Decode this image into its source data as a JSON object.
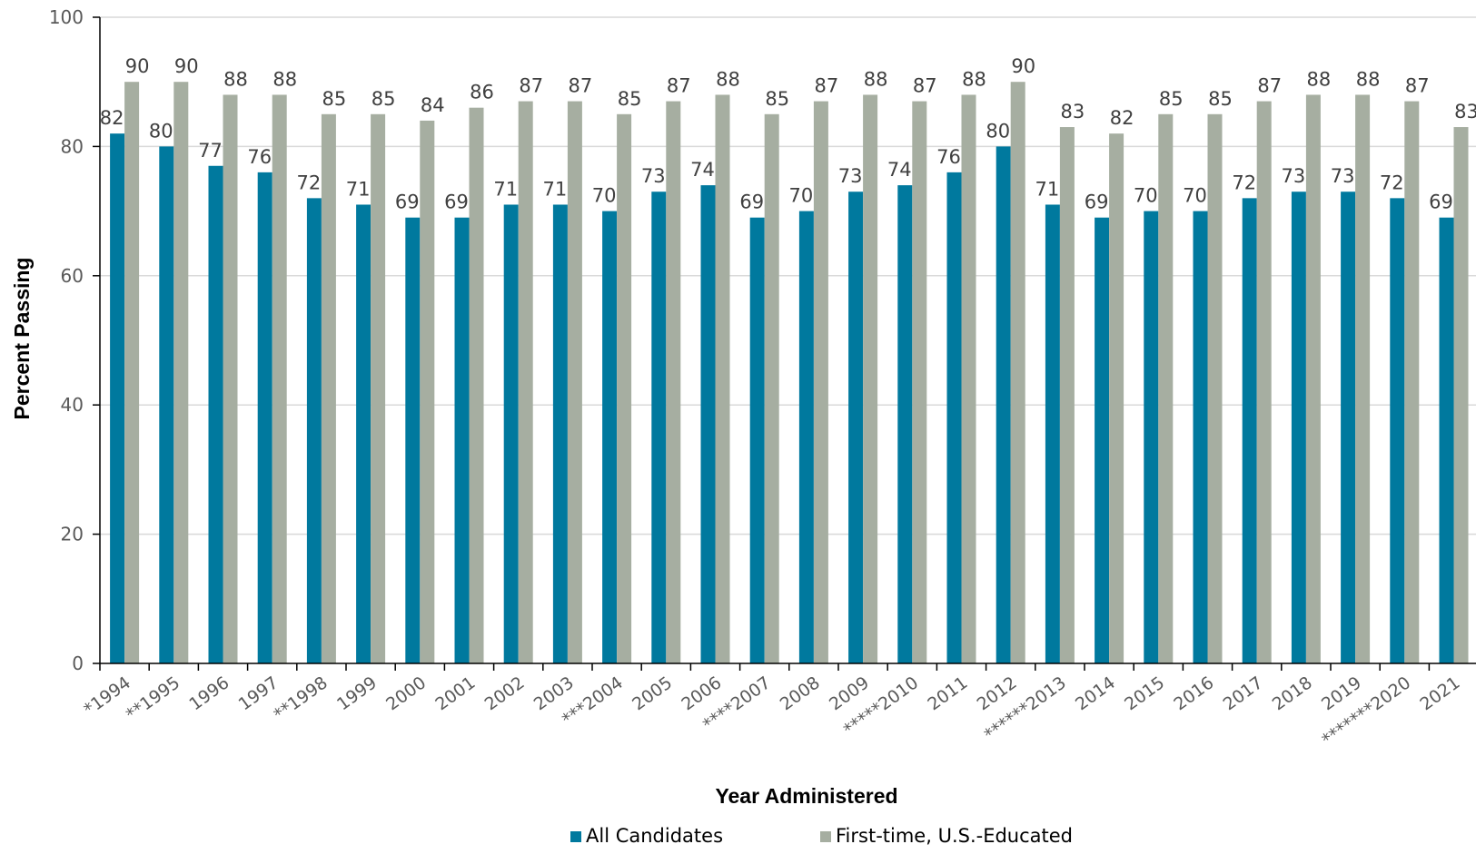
{
  "chart_data": {
    "type": "bar",
    "categories": [
      "*1994",
      "**1995",
      "1996",
      "1997",
      "**1998",
      "1999",
      "2000",
      "2001",
      "2002",
      "2003",
      "***2004",
      "2005",
      "2006",
      "****2007",
      "2008",
      "2009",
      "*****2010",
      "2011",
      "2012",
      "******2013",
      "2014",
      "2015",
      "2016",
      "2017",
      "2018",
      "2019",
      "*******2020",
      "2021"
    ],
    "series": [
      {
        "name": "All Candidates",
        "color": "#00799E",
        "values": [
          82,
          80,
          77,
          76,
          72,
          71,
          69,
          69,
          71,
          71,
          70,
          73,
          74,
          69,
          70,
          73,
          74,
          76,
          80,
          71,
          69,
          70,
          70,
          72,
          73,
          73,
          72,
          69
        ]
      },
      {
        "name": "First-time, U.S.-Educated",
        "color": "#A6AEA1",
        "values": [
          90,
          90,
          88,
          88,
          85,
          85,
          84,
          86,
          87,
          87,
          85,
          87,
          88,
          85,
          87,
          88,
          87,
          88,
          90,
          83,
          82,
          85,
          85,
          87,
          88,
          88,
          87,
          83
        ]
      }
    ],
    "xlabel": "Year Administered",
    "ylabel": "Percent Passing",
    "ylim": [
      0,
      100
    ],
    "yticks": [
      "0",
      "20",
      "40",
      "60",
      "80",
      "100"
    ],
    "grid": true,
    "legend": "bottom-center"
  }
}
